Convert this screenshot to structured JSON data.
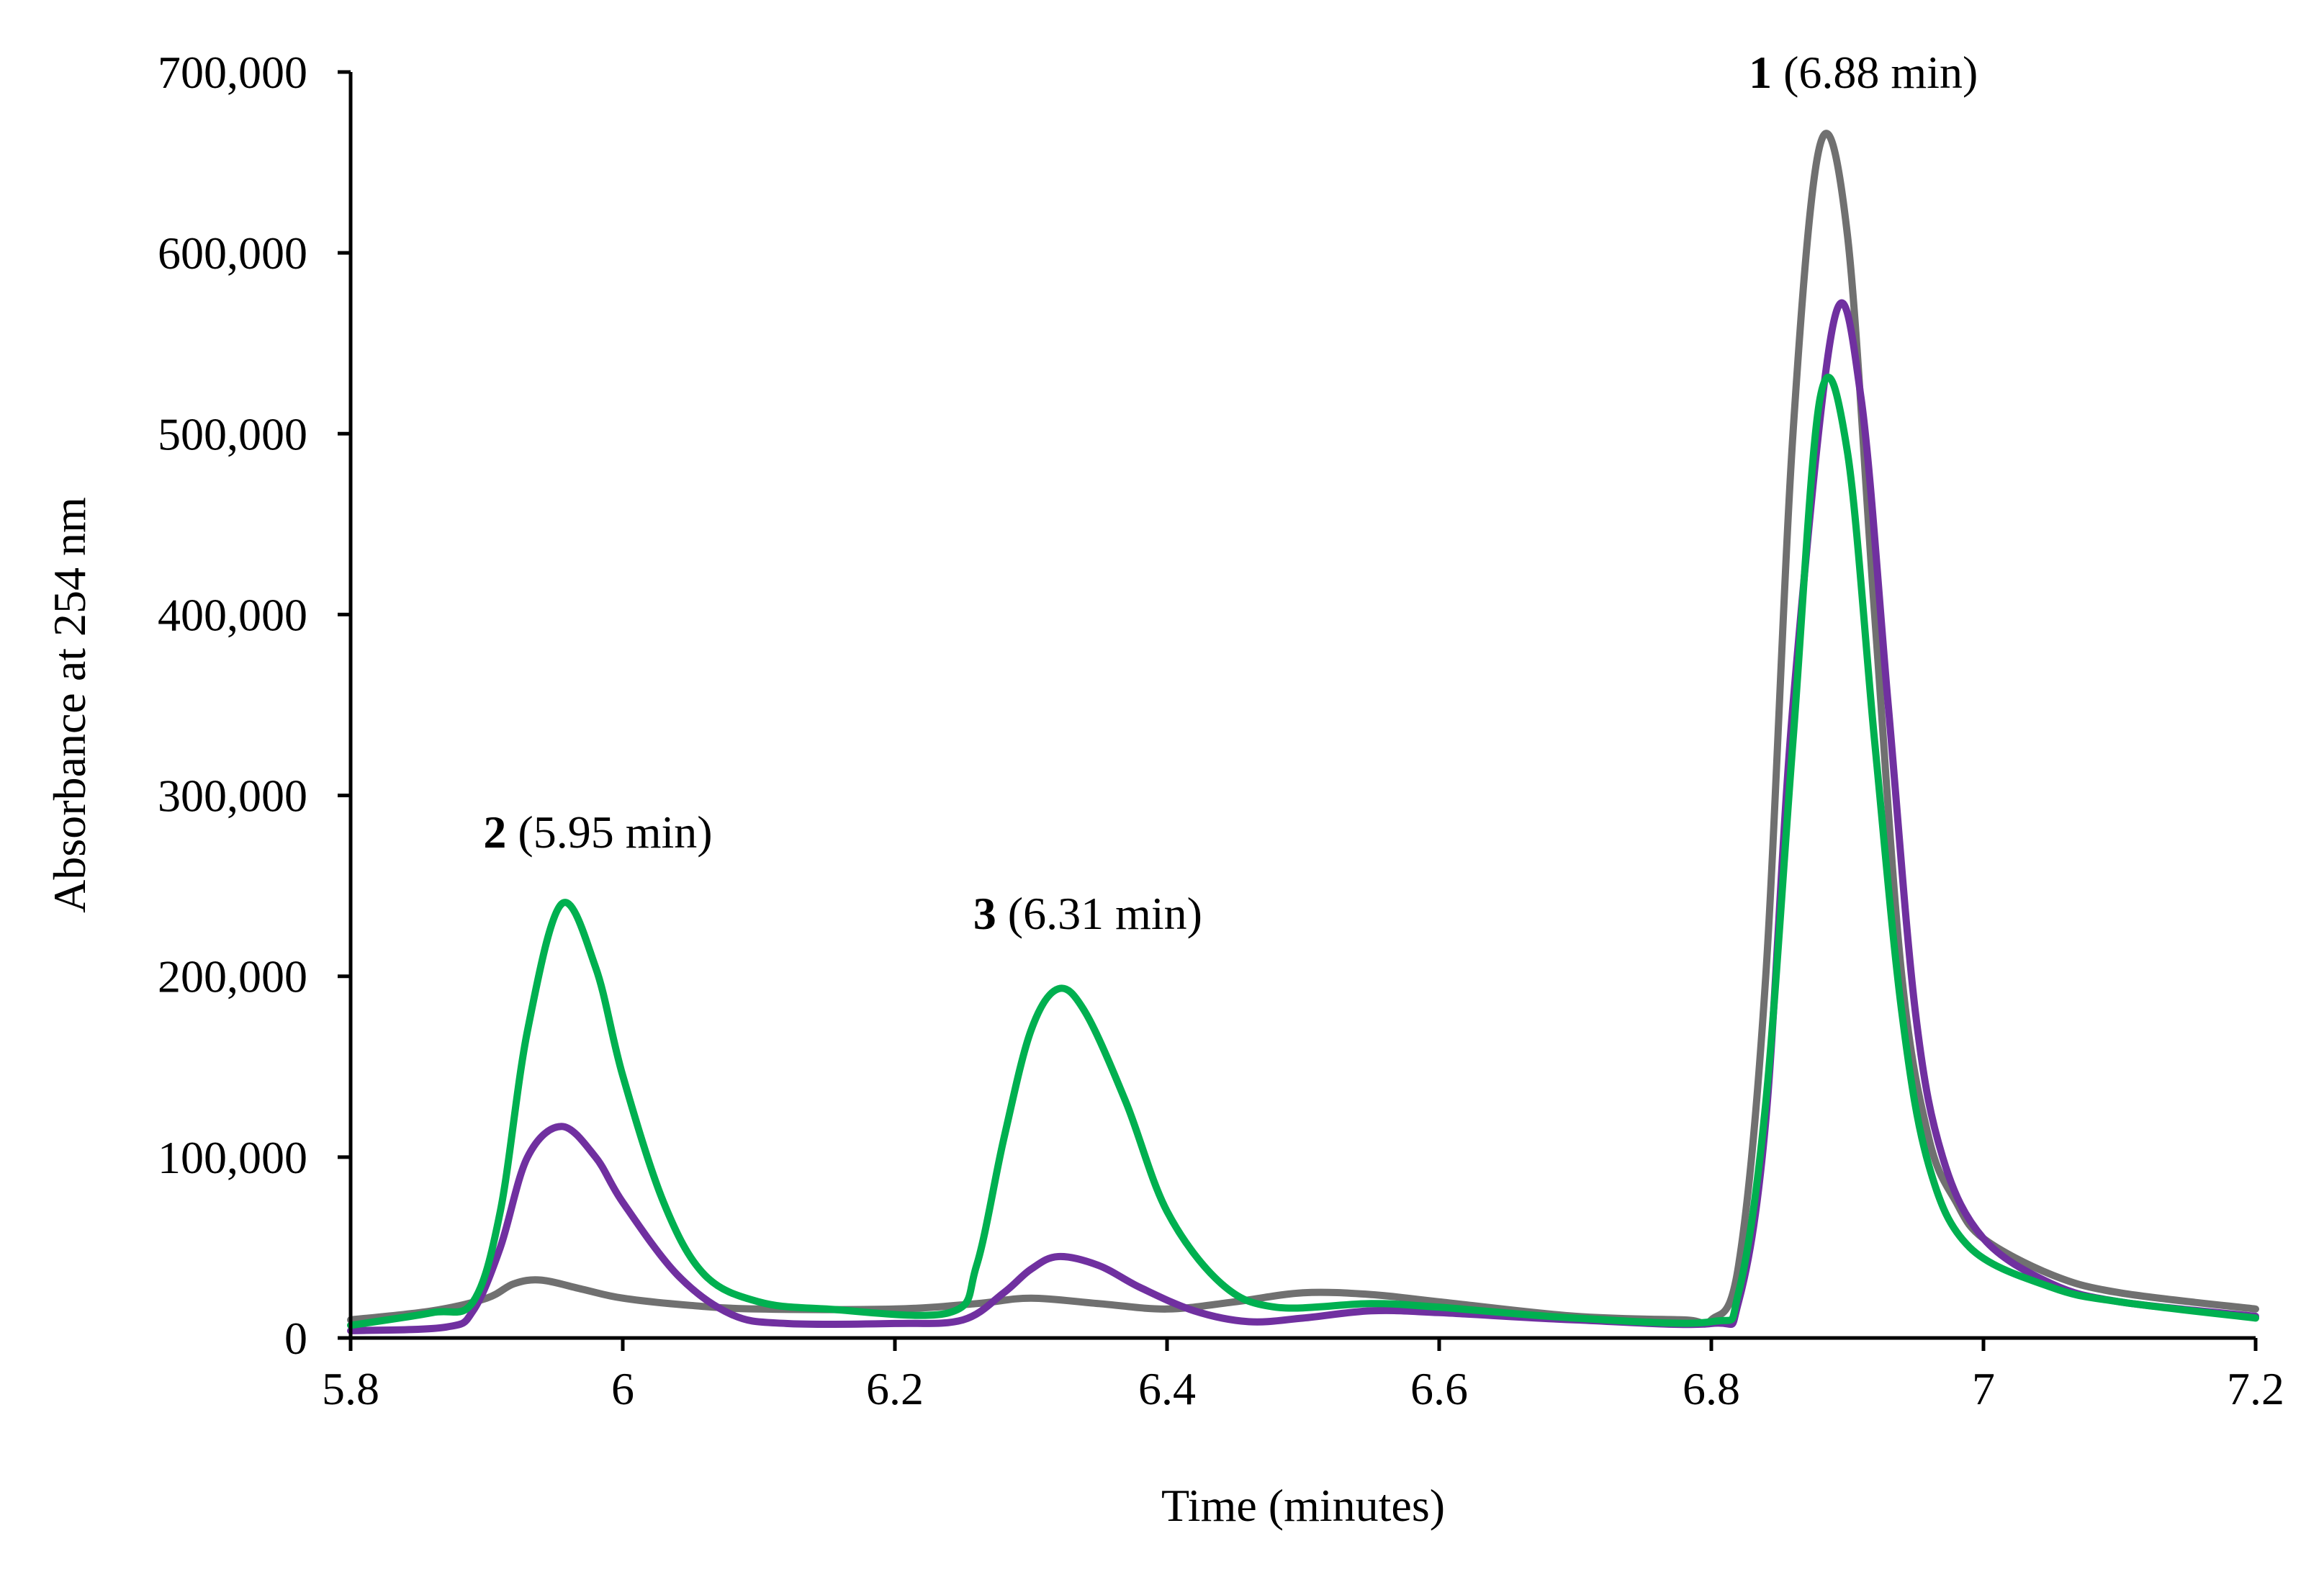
{
  "chart_data": {
    "type": "line",
    "title": "",
    "xlabel": "Time (minutes)",
    "ylabel": "Absorbance at 254 nm",
    "xlim": [
      5.8,
      7.2
    ],
    "ylim": [
      0,
      700000
    ],
    "x_ticks": [
      5.8,
      6.0,
      6.2,
      6.4,
      6.6,
      6.8,
      7.0,
      7.2
    ],
    "x_tick_labels": [
      "5.8",
      "6",
      "6.2",
      "6.4",
      "6.6",
      "6.8",
      "7",
      "7.2"
    ],
    "y_ticks": [
      0,
      100000,
      200000,
      300000,
      400000,
      500000,
      600000,
      700000
    ],
    "y_tick_labels": [
      "0",
      "100,000",
      "200,000",
      "300,000",
      "400,000",
      "500,000",
      "600,000",
      "700,000"
    ],
    "grid": false,
    "legend": null,
    "series": [
      {
        "name": "gray trace",
        "color": "#707070",
        "points": [
          [
            5.8,
            10000
          ],
          [
            5.86,
            15000
          ],
          [
            5.9,
            22000
          ],
          [
            5.92,
            30000
          ],
          [
            5.94,
            32000
          ],
          [
            5.97,
            27000
          ],
          [
            6.0,
            22000
          ],
          [
            6.05,
            18000
          ],
          [
            6.1,
            16000
          ],
          [
            6.2,
            16000
          ],
          [
            6.26,
            19000
          ],
          [
            6.3,
            22000
          ],
          [
            6.35,
            19000
          ],
          [
            6.4,
            16000
          ],
          [
            6.45,
            20000
          ],
          [
            6.5,
            25000
          ],
          [
            6.55,
            24000
          ],
          [
            6.6,
            20000
          ],
          [
            6.7,
            12000
          ],
          [
            6.78,
            10000
          ],
          [
            6.8,
            10000
          ],
          [
            6.82,
            40000
          ],
          [
            6.84,
            200000
          ],
          [
            6.86,
            500000
          ],
          [
            6.88,
            660000
          ],
          [
            6.9,
            610000
          ],
          [
            6.92,
            400000
          ],
          [
            6.94,
            200000
          ],
          [
            6.96,
            110000
          ],
          [
            6.98,
            75000
          ],
          [
            7.0,
            55000
          ],
          [
            7.05,
            35000
          ],
          [
            7.1,
            25000
          ],
          [
            7.2,
            16000
          ]
        ]
      },
      {
        "name": "purple trace",
        "color": "#7030A0",
        "points": [
          [
            5.8,
            4000
          ],
          [
            5.87,
            6000
          ],
          [
            5.89,
            15000
          ],
          [
            5.91,
            50000
          ],
          [
            5.93,
            100000
          ],
          [
            5.955,
            117000
          ],
          [
            5.98,
            100000
          ],
          [
            6.0,
            75000
          ],
          [
            6.04,
            35000
          ],
          [
            6.08,
            13000
          ],
          [
            6.12,
            8000
          ],
          [
            6.2,
            8000
          ],
          [
            6.25,
            10000
          ],
          [
            6.28,
            25000
          ],
          [
            6.3,
            38000
          ],
          [
            6.32,
            45000
          ],
          [
            6.35,
            40000
          ],
          [
            6.38,
            28000
          ],
          [
            6.42,
            15000
          ],
          [
            6.46,
            9000
          ],
          [
            6.5,
            11000
          ],
          [
            6.55,
            15000
          ],
          [
            6.6,
            14000
          ],
          [
            6.7,
            10000
          ],
          [
            6.8,
            8000
          ],
          [
            6.82,
            20000
          ],
          [
            6.84,
            120000
          ],
          [
            6.86,
            350000
          ],
          [
            6.89,
            562000
          ],
          [
            6.91,
            520000
          ],
          [
            6.93,
            350000
          ],
          [
            6.95,
            180000
          ],
          [
            6.97,
            100000
          ],
          [
            7.0,
            55000
          ],
          [
            7.05,
            30000
          ],
          [
            7.1,
            20000
          ],
          [
            7.2,
            12000
          ]
        ]
      },
      {
        "name": "green trace",
        "color": "#00B050",
        "points": [
          [
            5.8,
            7000
          ],
          [
            5.86,
            14000
          ],
          [
            5.89,
            20000
          ],
          [
            5.91,
            70000
          ],
          [
            5.93,
            170000
          ],
          [
            5.955,
            240000
          ],
          [
            5.98,
            205000
          ],
          [
            6.0,
            145000
          ],
          [
            6.03,
            75000
          ],
          [
            6.06,
            35000
          ],
          [
            6.1,
            20000
          ],
          [
            6.15,
            16000
          ],
          [
            6.24,
            14000
          ],
          [
            6.26,
            40000
          ],
          [
            6.28,
            110000
          ],
          [
            6.3,
            170000
          ],
          [
            6.32,
            193000
          ],
          [
            6.34,
            180000
          ],
          [
            6.37,
            130000
          ],
          [
            6.4,
            70000
          ],
          [
            6.44,
            30000
          ],
          [
            6.48,
            17000
          ],
          [
            6.55,
            19000
          ],
          [
            6.6,
            17000
          ],
          [
            6.7,
            11000
          ],
          [
            6.8,
            9000
          ],
          [
            6.82,
            25000
          ],
          [
            6.84,
            130000
          ],
          [
            6.86,
            330000
          ],
          [
            6.88,
            520000
          ],
          [
            6.9,
            490000
          ],
          [
            6.92,
            330000
          ],
          [
            6.94,
            180000
          ],
          [
            6.96,
            95000
          ],
          [
            6.99,
            50000
          ],
          [
            7.05,
            28000
          ],
          [
            7.1,
            20000
          ],
          [
            7.2,
            11000
          ]
        ]
      }
    ],
    "annotations": [
      {
        "number": "1",
        "text": "(6.88 min)",
        "x": 6.88,
        "y": 700000
      },
      {
        "number": "2",
        "text": "(5.95 min)",
        "x": 5.95,
        "y": 280000
      },
      {
        "number": "3",
        "text": "(6.31 min)",
        "x": 6.31,
        "y": 235000
      }
    ]
  }
}
